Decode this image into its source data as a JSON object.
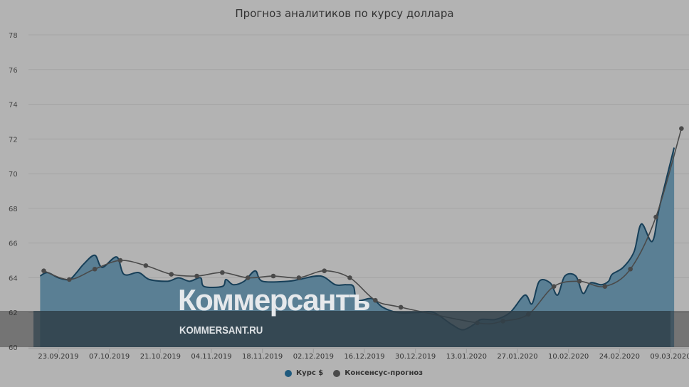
{
  "chart_data": {
    "type": "area+line",
    "title": "Прогноз аналитиков по курсу доллара",
    "xlabel": "",
    "ylabel": "",
    "ylim": [
      60,
      78
    ],
    "yticks": [
      60,
      62,
      64,
      66,
      68,
      70,
      72,
      74,
      76,
      78
    ],
    "xticks": [
      "23.09.2019",
      "07.10.2019",
      "21.10.2019",
      "04.11.2019",
      "18.11.2019",
      "02.12.2019",
      "16.12.2019",
      "30.12.2019",
      "13.01.2020",
      "27.01.2020",
      "10.02.2020",
      "24.02.2020",
      "09.03.2020"
    ],
    "grid": true,
    "legend_position": "bottom",
    "series": [
      {
        "name": "Курс $",
        "color": "#1f5a7e",
        "kind": "area",
        "points": [
          [
            "18.09.2019",
            64.1
          ],
          [
            "20.09.2019",
            64.3
          ],
          [
            "23.09.2019",
            64.0
          ],
          [
            "26.09.2019",
            63.9
          ],
          [
            "28.09.2019",
            64.3
          ],
          [
            "30.09.2019",
            64.8
          ],
          [
            "03.10.2019",
            65.3
          ],
          [
            "05.10.2019",
            64.6
          ],
          [
            "09.10.2019",
            65.2
          ],
          [
            "11.10.2019",
            64.2
          ],
          [
            "15.10.2019",
            64.3
          ],
          [
            "18.10.2019",
            63.9
          ],
          [
            "23.10.2019",
            63.8
          ],
          [
            "26.10.2019",
            64.0
          ],
          [
            "29.10.2019",
            63.8
          ],
          [
            "01.11.2019",
            64.0
          ],
          [
            "02.11.2019",
            63.5
          ],
          [
            "07.11.2019",
            63.5
          ],
          [
            "08.11.2019",
            63.9
          ],
          [
            "10.11.2019",
            63.6
          ],
          [
            "13.11.2019",
            63.8
          ],
          [
            "16.11.2019",
            64.4
          ],
          [
            "18.11.2019",
            63.8
          ],
          [
            "25.11.2019",
            63.8
          ],
          [
            "28.11.2019",
            63.9
          ],
          [
            "04.12.2019",
            64.1
          ],
          [
            "08.12.2019",
            63.6
          ],
          [
            "11.12.2019",
            63.6
          ],
          [
            "13.12.2019",
            63.5
          ],
          [
            "14.12.2019",
            62.7
          ],
          [
            "18.12.2019",
            62.8
          ],
          [
            "21.12.2019",
            62.3
          ],
          [
            "25.12.2019",
            62.0
          ],
          [
            "31.12.2019",
            62.0
          ],
          [
            "04.01.2020",
            62.0
          ],
          [
            "09.01.2020",
            61.3
          ],
          [
            "12.01.2020",
            61.0
          ],
          [
            "15.01.2020",
            61.3
          ],
          [
            "17.01.2020",
            61.6
          ],
          [
            "21.01.2020",
            61.6
          ],
          [
            "25.01.2020",
            62.0
          ],
          [
            "29.01.2020",
            63.0
          ],
          [
            "31.01.2020",
            62.5
          ],
          [
            "02.02.2020",
            63.8
          ],
          [
            "05.02.2020",
            63.7
          ],
          [
            "07.02.2020",
            63.0
          ],
          [
            "09.02.2020",
            64.1
          ],
          [
            "12.02.2020",
            64.1
          ],
          [
            "14.02.2020",
            63.1
          ],
          [
            "16.02.2020",
            63.7
          ],
          [
            "19.02.2020",
            63.6
          ],
          [
            "21.02.2020",
            63.8
          ],
          [
            "22.02.2020",
            64.2
          ],
          [
            "25.02.2020",
            64.6
          ],
          [
            "28.02.2020",
            65.5
          ],
          [
            "01.03.2020",
            67.1
          ],
          [
            "04.03.2020",
            66.1
          ],
          [
            "06.03.2020",
            68.1
          ],
          [
            "10.03.2020",
            71.5
          ]
        ]
      },
      {
        "name": "Консенсус-прогноз",
        "color": "#4a4a4a",
        "kind": "line",
        "points": [
          [
            "19.09.2019",
            64.4
          ],
          [
            "26.09.2019",
            63.9
          ],
          [
            "03.10.2019",
            64.5
          ],
          [
            "10.10.2019",
            65.0
          ],
          [
            "17.10.2019",
            64.7
          ],
          [
            "24.10.2019",
            64.2
          ],
          [
            "31.10.2019",
            64.1
          ],
          [
            "07.11.2019",
            64.3
          ],
          [
            "14.11.2019",
            64.0
          ],
          [
            "21.11.2019",
            64.1
          ],
          [
            "28.11.2019",
            64.0
          ],
          [
            "05.12.2019",
            64.4
          ],
          [
            "12.12.2019",
            64.0
          ],
          [
            "19.12.2019",
            62.7
          ],
          [
            "26.12.2019",
            62.3
          ],
          [
            "16.01.2020",
            61.4
          ],
          [
            "23.01.2020",
            61.5
          ],
          [
            "30.01.2020",
            61.9
          ],
          [
            "06.02.2020",
            63.5
          ],
          [
            "13.02.2020",
            63.8
          ],
          [
            "20.02.2020",
            63.5
          ],
          [
            "27.02.2020",
            64.5
          ],
          [
            "05.03.2020",
            67.5
          ],
          [
            "12.03.2020",
            72.6
          ]
        ]
      }
    ]
  },
  "page": {
    "title": "Прогноз аналитиков по курсу доллара",
    "watermark_logo": "Коммерсантъ",
    "watermark_site": "KOMMERSANT.RU"
  },
  "legend": [
    {
      "label": "Курс $",
      "color": "#1f5a7e"
    },
    {
      "label": "Консенсус-прогноз",
      "color": "#4a4a4a"
    }
  ]
}
